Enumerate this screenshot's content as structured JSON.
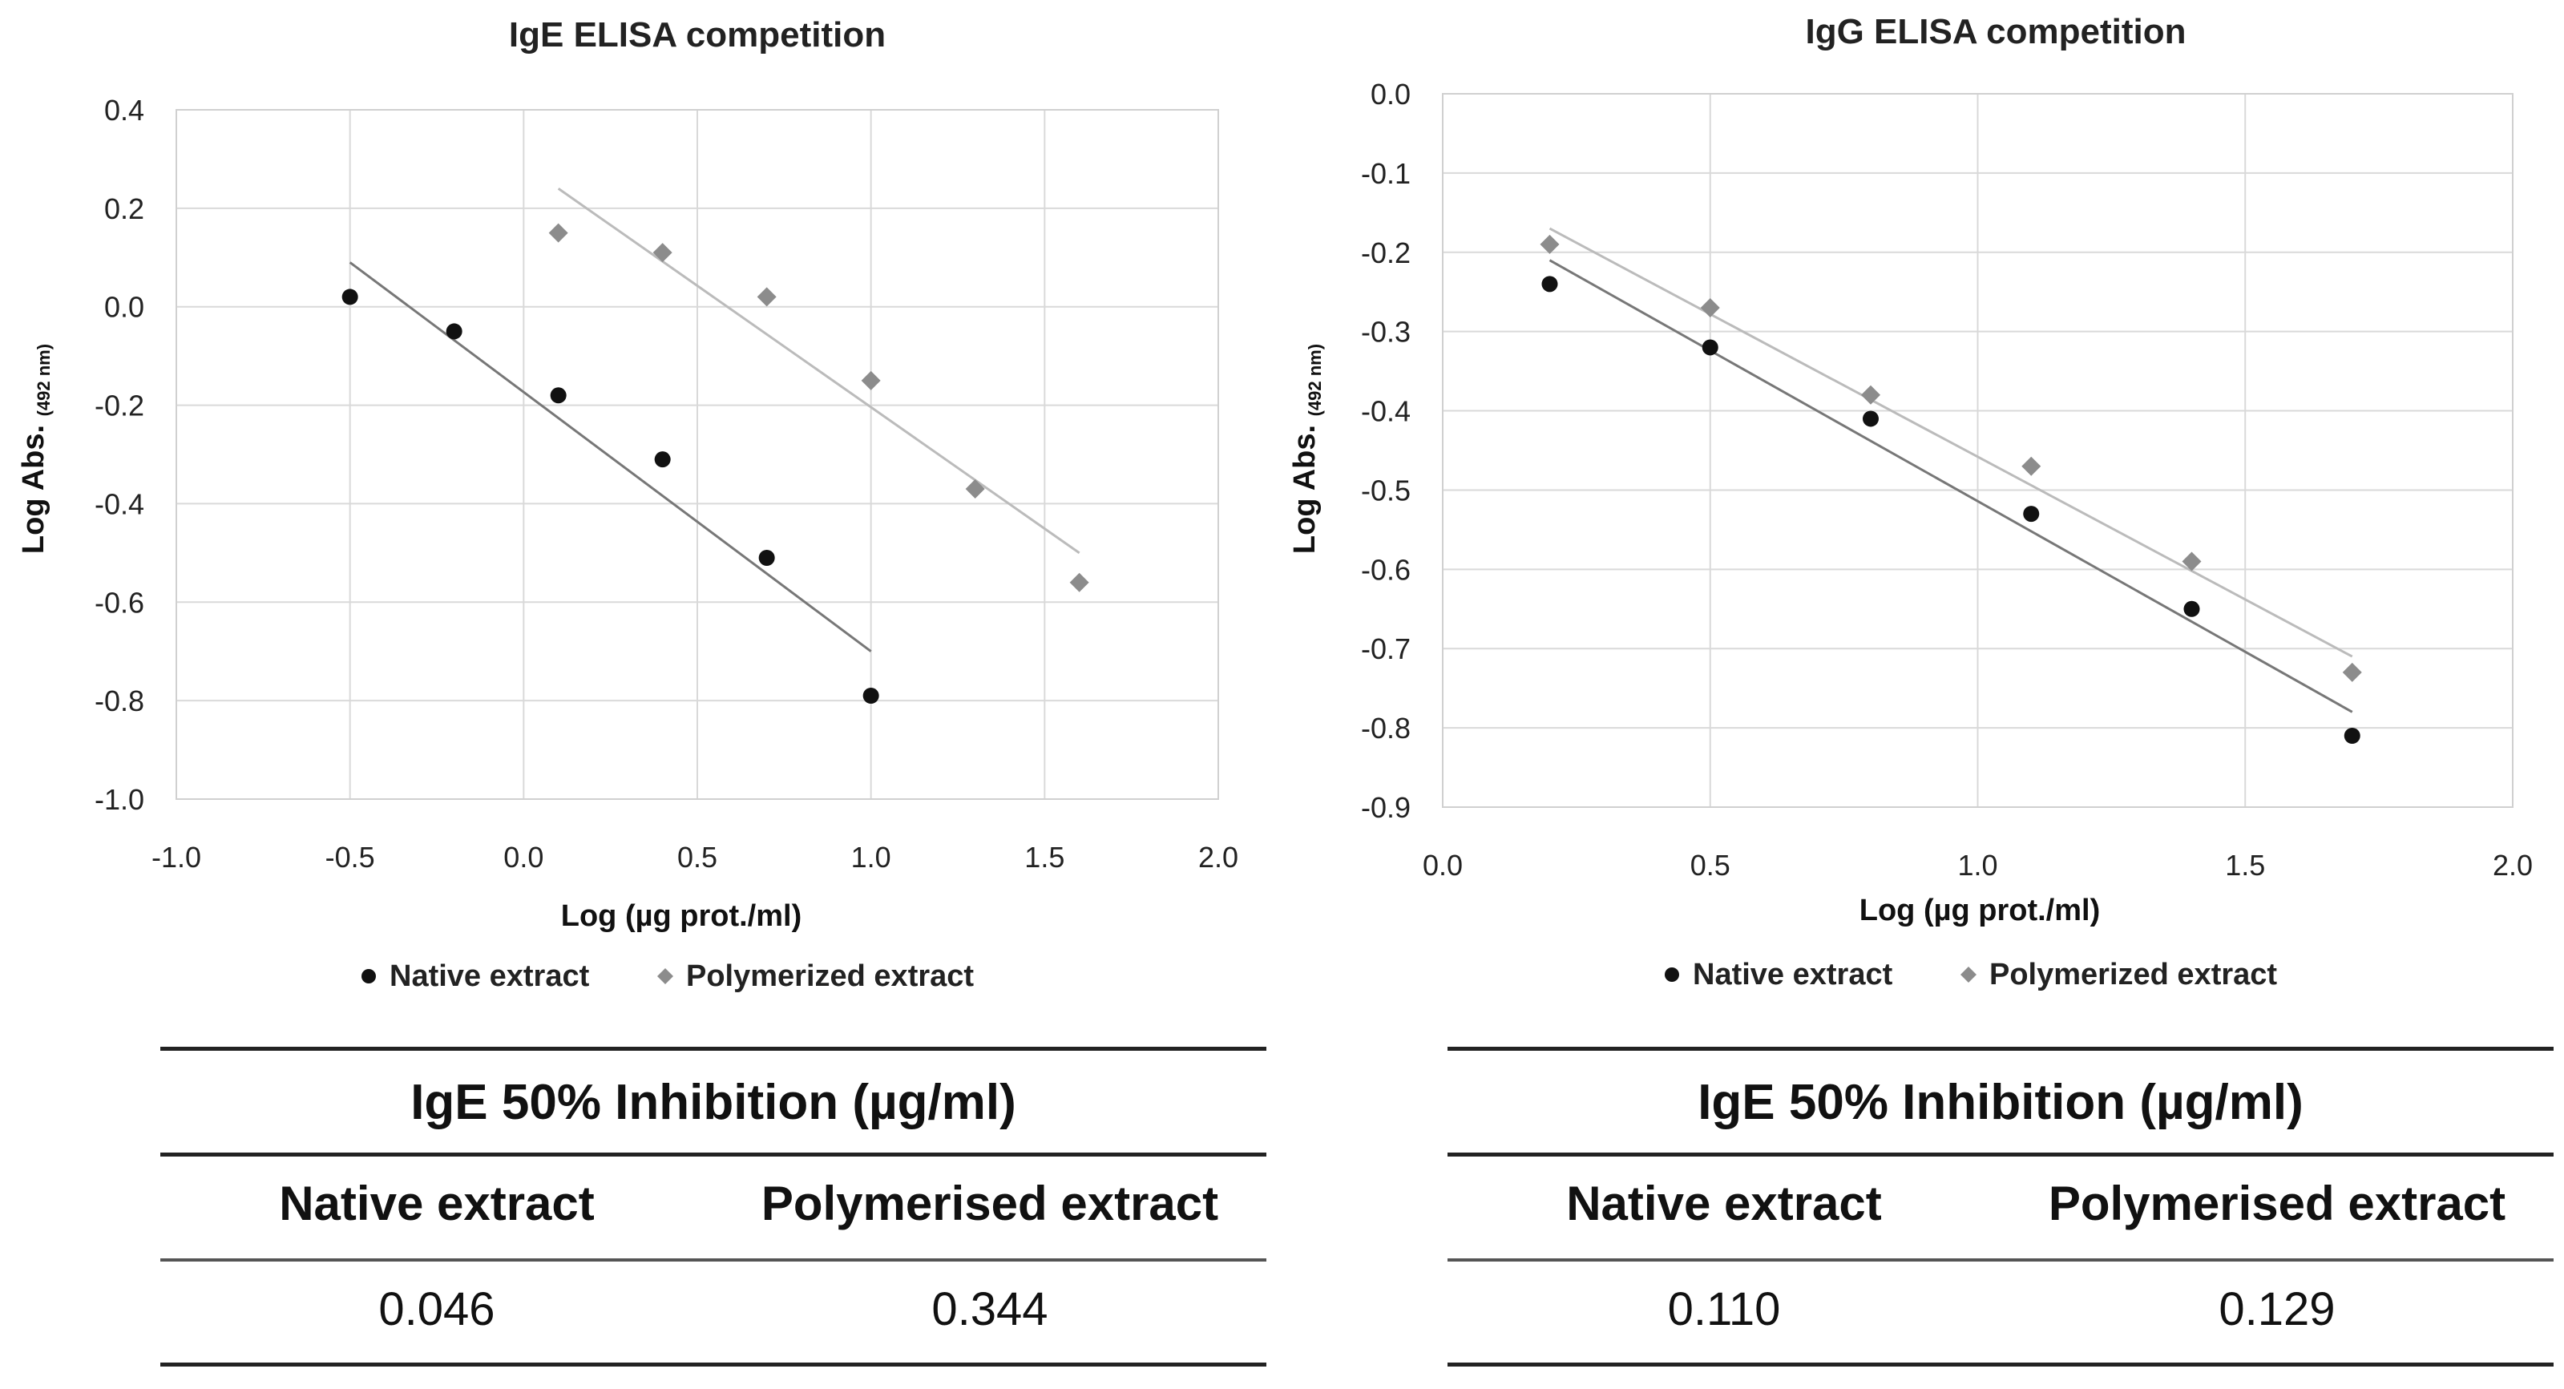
{
  "chart_data": [
    {
      "type": "scatter",
      "title": "IgE ELISA competition",
      "xlabel": "Log (µg prot./ml)",
      "ylabel": "Log Abs.",
      "ylabel_sub": "(492 nm)",
      "xlim": [
        -1.0,
        2.0
      ],
      "ylim": [
        -1.0,
        0.4
      ],
      "xticks": [
        -1.0,
        -0.5,
        0.0,
        0.5,
        1.0,
        1.5,
        2.0
      ],
      "xtick_labels": [
        "-1.0",
        "-0.5",
        "0.0",
        "0.5",
        "1.0",
        "1.5",
        "2.0"
      ],
      "yticks": [
        0.4,
        0.2,
        0.0,
        -0.2,
        -0.4,
        -0.6,
        -0.8,
        -1.0
      ],
      "ytick_labels": [
        "0.4",
        "0.2",
        "0.0",
        "-0.2",
        "-0.4",
        "-0.6",
        "-0.8",
        "-1.0"
      ],
      "grid": true,
      "legend_position": "bottom",
      "series": [
        {
          "name": "Native extract",
          "marker": "circle",
          "color": "#111111",
          "line_color": "#777777",
          "x": [
            -0.5,
            -0.2,
            0.1,
            0.4,
            0.7,
            1.0
          ],
          "y": [
            0.02,
            -0.05,
            -0.18,
            -0.31,
            -0.51,
            -0.79
          ],
          "trendline": {
            "x": [
              -0.5,
              1.0
            ],
            "y": [
              0.09,
              -0.7
            ]
          }
        },
        {
          "name": "Polymerized extract",
          "marker": "diamond",
          "color": "#8c8c8c",
          "line_color": "#bbbbbb",
          "x": [
            0.1,
            0.4,
            0.7,
            1.0,
            1.3,
            1.6
          ],
          "y": [
            0.15,
            0.11,
            0.02,
            -0.15,
            -0.37,
            -0.56
          ],
          "trendline": {
            "x": [
              0.1,
              1.6
            ],
            "y": [
              0.24,
              -0.5
            ]
          }
        }
      ]
    },
    {
      "type": "scatter",
      "title": "IgG ELISA competition",
      "xlabel": "Log (µg prot./ml)",
      "ylabel": "Log Abs.",
      "ylabel_sub": "(492 nm)",
      "xlim": [
        0.0,
        2.0
      ],
      "ylim": [
        -0.9,
        0.0
      ],
      "xticks": [
        0.0,
        0.5,
        1.0,
        1.5,
        2.0
      ],
      "xtick_labels": [
        "0.0",
        "0.5",
        "1.0",
        "1.5",
        "2.0"
      ],
      "yticks": [
        0.0,
        -0.1,
        -0.2,
        -0.3,
        -0.4,
        -0.5,
        -0.6,
        -0.7,
        -0.8,
        -0.9
      ],
      "ytick_labels": [
        "0.0",
        "-0.1",
        "-0.2",
        "-0.3",
        "-0.4",
        "-0.5",
        "-0.6",
        "-0.7",
        "-0.8",
        "-0.9"
      ],
      "grid": true,
      "legend_position": "bottom",
      "series": [
        {
          "name": "Native extract",
          "marker": "circle",
          "color": "#111111",
          "line_color": "#777777",
          "x": [
            0.2,
            0.5,
            0.8,
            1.1,
            1.4,
            1.7
          ],
          "y": [
            -0.24,
            -0.32,
            -0.41,
            -0.53,
            -0.65,
            -0.81
          ],
          "trendline": {
            "x": [
              0.2,
              1.7
            ],
            "y": [
              -0.21,
              -0.78
            ]
          }
        },
        {
          "name": "Polymerized extract",
          "marker": "diamond",
          "color": "#8c8c8c",
          "line_color": "#bbbbbb",
          "x": [
            0.2,
            0.5,
            0.8,
            1.1,
            1.4,
            1.7
          ],
          "y": [
            -0.19,
            -0.27,
            -0.38,
            -0.47,
            -0.59,
            -0.73
          ],
          "trendline": {
            "x": [
              0.2,
              1.7
            ],
            "y": [
              -0.17,
              -0.71
            ]
          }
        }
      ]
    }
  ],
  "tables": [
    {
      "header": "IgE 50% Inhibition  (µg/ml)",
      "columns": [
        "Native extract",
        "Polymerised extract"
      ],
      "values": [
        "0.046",
        "0.344"
      ]
    },
    {
      "header": "IgE 50% Inhibition  (µg/ml)",
      "columns": [
        "Native extract",
        "Polymerised extract"
      ],
      "values": [
        "0.110",
        "0.129"
      ]
    }
  ]
}
